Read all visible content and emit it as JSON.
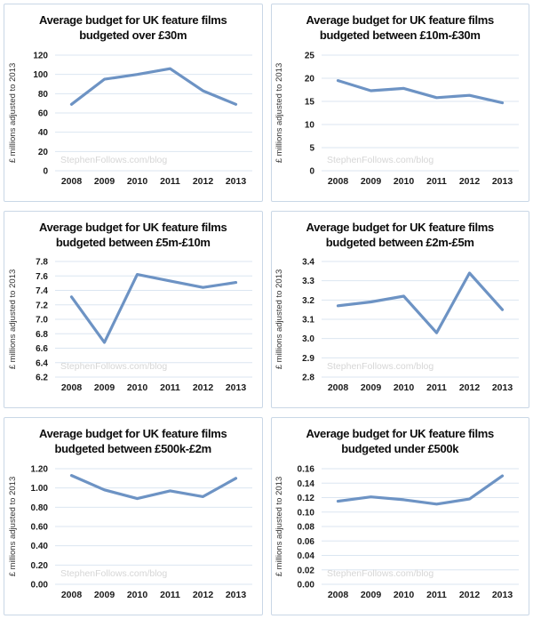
{
  "watermark": "StephenFollows.com/blog",
  "colors": {
    "line": "#6D93C4",
    "grid": "#DBE6F1",
    "panel_border": "#C9D7E6",
    "tick_text": "#1A1A1A",
    "axis_label_text": "#333333",
    "watermark_text": "#D6D6D6",
    "title_text": "#0D0D0D",
    "background": "#FFFFFF"
  },
  "chart_data": [
    {
      "type": "line",
      "title_line1": "Average budget for UK feature films",
      "title_line2": "budgeted over £30m",
      "categories": [
        "2008",
        "2009",
        "2010",
        "2011",
        "2012",
        "2013"
      ],
      "values": [
        69,
        95,
        100,
        106,
        83,
        69
      ],
      "xlabel": "",
      "ylabel": "£ millions adjusted to 2013",
      "ylim": [
        0,
        120
      ],
      "ystep": 20,
      "decimals": 0,
      "grid": true,
      "legend": "none",
      "watermark": "StephenFollows.com/blog"
    },
    {
      "type": "line",
      "title_line1": "Average budget for UK feature films",
      "title_line2": "budgeted between £10m-£30m",
      "categories": [
        "2008",
        "2009",
        "2010",
        "2011",
        "2012",
        "2013"
      ],
      "values": [
        19.5,
        17.3,
        17.8,
        15.8,
        16.3,
        14.7
      ],
      "xlabel": "",
      "ylabel": "£ millions adjusted to 2013",
      "ylim": [
        0,
        25
      ],
      "ystep": 5,
      "decimals": 0,
      "grid": true,
      "legend": "none",
      "watermark": "StephenFollows.com/blog"
    },
    {
      "type": "line",
      "title_line1": "Average budget for UK feature films",
      "title_line2": "budgeted between £5m-£10m",
      "categories": [
        "2008",
        "2009",
        "2010",
        "2011",
        "2012",
        "2013"
      ],
      "values": [
        7.31,
        6.68,
        7.62,
        7.53,
        7.44,
        7.51
      ],
      "xlabel": "",
      "ylabel": "£ millions adjusted to 2013",
      "ylim": [
        6.2,
        7.8
      ],
      "ystep": 0.2,
      "decimals": 1,
      "grid": true,
      "legend": "none",
      "watermark": "StephenFollows.com/blog"
    },
    {
      "type": "line",
      "title_line1": "Average budget for UK feature films",
      "title_line2": "budgeted between £2m-£5m",
      "categories": [
        "2008",
        "2009",
        "2010",
        "2011",
        "2012",
        "2013"
      ],
      "values": [
        3.17,
        3.19,
        3.22,
        3.03,
        3.34,
        3.15
      ],
      "xlabel": "",
      "ylabel": "£ millions adjusted to 2013",
      "ylim": [
        2.8,
        3.4
      ],
      "ystep": 0.1,
      "decimals": 1,
      "grid": true,
      "legend": "none",
      "watermark": "StephenFollows.com/blog"
    },
    {
      "type": "line",
      "title_line1": "Average budget for UK feature films",
      "title_line2": "budgeted between £500k-£2m",
      "categories": [
        "2008",
        "2009",
        "2010",
        "2011",
        "2012",
        "2013"
      ],
      "values": [
        1.13,
        0.98,
        0.89,
        0.97,
        0.91,
        1.1
      ],
      "xlabel": "",
      "ylabel": "£ millions adjusted to 2013",
      "ylim": [
        0,
        1.2
      ],
      "ystep": 0.2,
      "decimals": 2,
      "grid": true,
      "legend": "none",
      "watermark": "StephenFollows.com/blog"
    },
    {
      "type": "line",
      "title_line1": "Average budget for UK feature films",
      "title_line2": "budgeted under £500k",
      "categories": [
        "2008",
        "2009",
        "2010",
        "2011",
        "2012",
        "2013"
      ],
      "values": [
        0.115,
        0.121,
        0.117,
        0.111,
        0.118,
        0.15
      ],
      "xlabel": "",
      "ylabel": "£ millions adjusted to 2013",
      "ylim": [
        0,
        0.16
      ],
      "ystep": 0.02,
      "decimals": 2,
      "grid": true,
      "legend": "none",
      "watermark": "StephenFollows.com/blog"
    }
  ]
}
